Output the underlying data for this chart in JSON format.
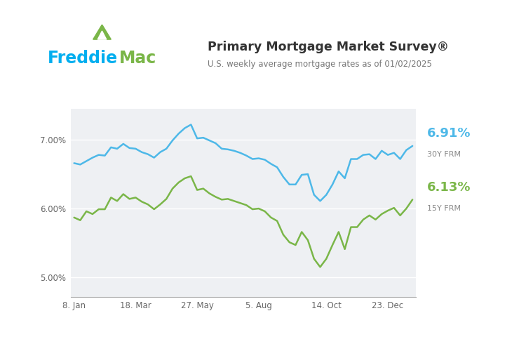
{
  "title": "Primary Mortgage Market Survey®",
  "subtitle": "U.S. weekly average mortgage rates as of 01/02/2025",
  "color_30y": "#4db8e8",
  "color_15y": "#7ab648",
  "label_30y": "6.91%",
  "label_30y_sub": "30Y FRM",
  "label_15y": "6.13%",
  "label_15y_sub": "15Y FRM",
  "xtick_labels": [
    "8. Jan",
    "18. Mar",
    "27. May",
    "5. Aug",
    "14. Oct",
    "23. Dec"
  ],
  "ytick_values": [
    5.0,
    6.0,
    7.0
  ],
  "ylim": [
    4.72,
    7.45
  ],
  "bg_color": "#eef0f3",
  "freddie_blue": "#00aeef",
  "freddie_green": "#7ab648",
  "freddie_dark": "#333333",
  "rates_30y": [
    6.66,
    6.64,
    6.69,
    6.74,
    6.78,
    6.77,
    6.89,
    6.87,
    6.94,
    6.88,
    6.87,
    6.82,
    6.79,
    6.74,
    6.82,
    6.87,
    6.99,
    7.09,
    7.17,
    7.22,
    7.02,
    7.03,
    6.99,
    6.95,
    6.87,
    6.86,
    6.84,
    6.81,
    6.77,
    6.72,
    6.73,
    6.71,
    6.65,
    6.6,
    6.46,
    6.35,
    6.35,
    6.49,
    6.5,
    6.2,
    6.11,
    6.2,
    6.35,
    6.54,
    6.44,
    6.72,
    6.72,
    6.78,
    6.79,
    6.72,
    6.84,
    6.78,
    6.81,
    6.72,
    6.85,
    6.91
  ],
  "rates_15y": [
    5.87,
    5.83,
    5.96,
    5.92,
    5.99,
    5.99,
    6.16,
    6.11,
    6.21,
    6.14,
    6.16,
    6.1,
    6.06,
    5.99,
    6.06,
    6.14,
    6.29,
    6.38,
    6.44,
    6.47,
    6.27,
    6.29,
    6.22,
    6.17,
    6.13,
    6.14,
    6.11,
    6.08,
    6.05,
    5.99,
    6.0,
    5.96,
    5.87,
    5.82,
    5.62,
    5.51,
    5.47,
    5.66,
    5.54,
    5.27,
    5.15,
    5.27,
    5.47,
    5.66,
    5.41,
    5.73,
    5.73,
    5.84,
    5.9,
    5.84,
    5.92,
    5.97,
    6.01,
    5.9,
    6.0,
    6.13
  ],
  "xtick_pos": [
    0,
    10,
    20,
    30,
    41,
    51
  ]
}
